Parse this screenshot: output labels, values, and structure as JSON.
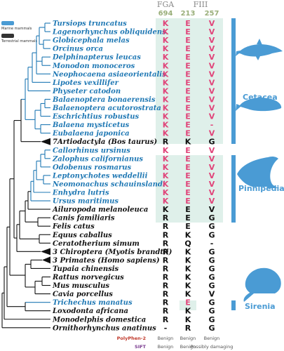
{
  "legend": [
    {
      "label": "Marine mammals",
      "color": "#4a9bd4"
    },
    {
      "label": "Terrestrial mammals",
      "color": "#333333"
    }
  ],
  "headers": {
    "fga": "FGA",
    "fiii": "FIII",
    "pos1": "694",
    "pos2": "213",
    "pos3": "257"
  },
  "colors": {
    "marine": "#1f78b4",
    "terrestrial": "#111111",
    "highlight": "#dff0ea",
    "mutation": "#e0457a",
    "group": "#4a9bd4"
  },
  "rows": [
    {
      "name": "Tursiops truncatus",
      "marine": true,
      "aa": [
        "K",
        "E",
        "V"
      ],
      "mut": true
    },
    {
      "name": "Lagenorhynchus obliquidens",
      "marine": true,
      "aa": [
        "K",
        "E",
        "V"
      ],
      "mut": true
    },
    {
      "name": "Globicephala melas",
      "marine": true,
      "aa": [
        "K",
        "E",
        "V"
      ],
      "mut": true
    },
    {
      "name": "Orcinus orca",
      "marine": true,
      "aa": [
        "K",
        "E",
        "V"
      ],
      "mut": true
    },
    {
      "name": "Delphinapterus leucas",
      "marine": true,
      "aa": [
        "K",
        "E",
        "V"
      ],
      "mut": true
    },
    {
      "name": "Monodon monoceros",
      "marine": true,
      "aa": [
        "K",
        "E",
        "V"
      ],
      "mut": true
    },
    {
      "name": "Neophocaena asiaeorientalis",
      "marine": true,
      "aa": [
        "K",
        "E",
        "V"
      ],
      "mut": true
    },
    {
      "name": "Lipotes vexillifer",
      "marine": true,
      "aa": [
        "K",
        "E",
        "V"
      ],
      "mut": true
    },
    {
      "name": "Physeter catodon",
      "marine": true,
      "aa": [
        "K",
        "E",
        "V"
      ],
      "mut": true
    },
    {
      "name": "Balaenoptera bonaerensis",
      "marine": true,
      "aa": [
        "K",
        "E",
        "V"
      ],
      "mut": true
    },
    {
      "name": "Balaenoptera acutorostrata",
      "marine": true,
      "aa": [
        "K",
        "E",
        "V"
      ],
      "mut": true
    },
    {
      "name": "Eschrichtius robustus",
      "marine": true,
      "aa": [
        "K",
        "E",
        "V"
      ],
      "mut": true
    },
    {
      "name": "Balaena mysticetus",
      "marine": true,
      "aa": [
        "K",
        "E",
        "-"
      ],
      "mut": true
    },
    {
      "name": "Eubalaena japonica",
      "marine": true,
      "aa": [
        "K",
        "E",
        "V"
      ],
      "mut": true
    },
    {
      "name": "7Artiodactyla (Bos taurus)",
      "marine": false,
      "aa": [
        "R",
        "K",
        "G"
      ],
      "mut": false,
      "collapsed": true
    },
    {
      "name": "Callorhinus ursinus",
      "marine": true,
      "aa": [
        "K",
        "E",
        "V"
      ],
      "mut": true
    },
    {
      "name": "Zalophus californianus",
      "marine": true,
      "aa": [
        "K",
        "E",
        "V"
      ],
      "mut": true
    },
    {
      "name": "Odobenus rosmarus",
      "marine": true,
      "aa": [
        "K",
        "E",
        "V"
      ],
      "mut": true
    },
    {
      "name": "Leptonychotes weddellii",
      "marine": true,
      "aa": [
        "K",
        "E",
        "V"
      ],
      "mut": true
    },
    {
      "name": "Neomonachus schauinslandi",
      "marine": true,
      "aa": [
        "K",
        "E",
        "V"
      ],
      "mut": true
    },
    {
      "name": "Enhydra lutris",
      "marine": true,
      "aa": [
        "K",
        "E",
        "V"
      ],
      "mut": true
    },
    {
      "name": "Ursus maritimus",
      "marine": true,
      "aa": [
        "K",
        "E",
        "V"
      ],
      "mut": true
    },
    {
      "name": "Ailuropoda melanoleuca",
      "marine": false,
      "aa": [
        "K",
        "E",
        "V"
      ],
      "mut": false
    },
    {
      "name": "Canis familiaris",
      "marine": false,
      "aa": [
        "R",
        "E",
        "G"
      ],
      "mut": false
    },
    {
      "name": "Felis catus",
      "marine": false,
      "aa": [
        "R",
        "E",
        "G"
      ],
      "mut": false
    },
    {
      "name": "Equus caballus",
      "marine": false,
      "aa": [
        "R",
        "K",
        "G"
      ],
      "mut": false
    },
    {
      "name": "Ceratotherium simum",
      "marine": false,
      "aa": [
        "R",
        "Q",
        "-"
      ],
      "mut": false
    },
    {
      "name": "3 Chiroptera (Myotis brandtii)",
      "marine": false,
      "aa": [
        "R",
        "K",
        "G"
      ],
      "mut": false,
      "collapsed": true
    },
    {
      "name": "3 Primates (Homo sapiens)",
      "marine": false,
      "aa": [
        "R",
        "K",
        "G"
      ],
      "mut": false,
      "collapsed": true
    },
    {
      "name": "Tupaia chinensis",
      "marine": false,
      "aa": [
        "R",
        "K",
        "G"
      ],
      "mut": false
    },
    {
      "name": "Rattus norvegicus",
      "marine": false,
      "aa": [
        "R",
        "K",
        "G"
      ],
      "mut": false
    },
    {
      "name": "Mus musculus",
      "marine": false,
      "aa": [
        "R",
        "K",
        "G"
      ],
      "mut": false
    },
    {
      "name": "Cavia porcellus",
      "marine": false,
      "aa": [
        "R",
        "K",
        "V"
      ],
      "mut": false
    },
    {
      "name": "Trichechus manatus",
      "marine": true,
      "aa": [
        "R",
        "E",
        "G"
      ],
      "mut": false,
      "mid": true
    },
    {
      "name": "Loxodonta africana",
      "marine": false,
      "aa": [
        "R",
        "K",
        "G"
      ],
      "mut": false
    },
    {
      "name": "Monodelphis domestica",
      "marine": false,
      "aa": [
        "R",
        "K",
        "G"
      ],
      "mut": false
    },
    {
      "name": "Ornithorhynchus anatinus",
      "marine": false,
      "aa": [
        "-",
        "R",
        "G"
      ],
      "mut": false
    }
  ],
  "groups": [
    {
      "label": "Cetacea",
      "icon": "dolphin-silhouette-icon"
    },
    {
      "label": "Pinnipedia",
      "icon": "seal-silhouette-icon"
    },
    {
      "label": "Sirenia",
      "icon": "manatee-silhouette-icon"
    }
  ],
  "predictions": {
    "polyphen_label": "PolyPhen-2",
    "sift_label": "SIFT",
    "polyphen": [
      "Benign",
      "Benign",
      "Benign"
    ],
    "sift": [
      "Benign",
      "Benign",
      "Possibly damaging"
    ]
  }
}
